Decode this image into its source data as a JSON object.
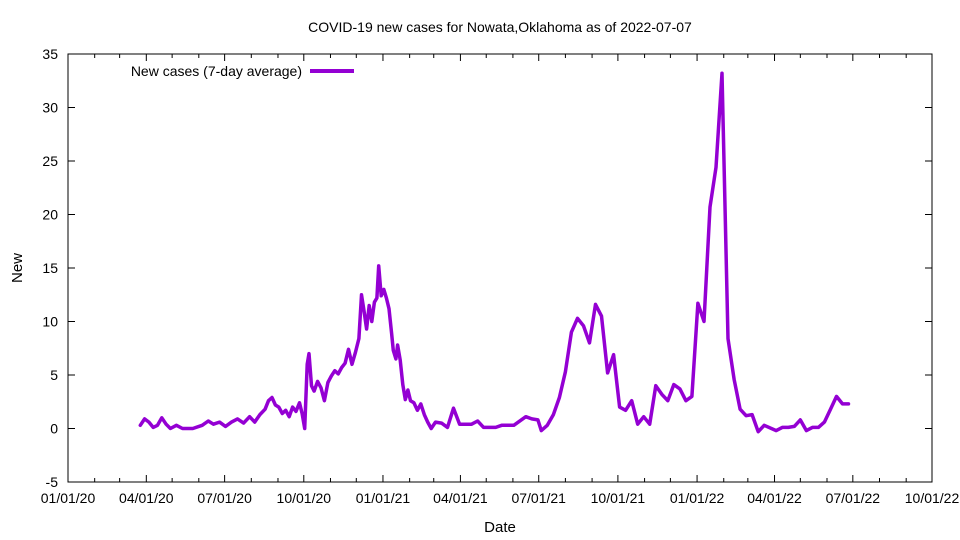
{
  "chart_data": {
    "type": "line",
    "title": "COVID-19 new cases for Nowata,Oklahoma as of 2022-07-07",
    "xlabel": "Date",
    "ylabel": "New",
    "ylim": [
      -5,
      35
    ],
    "xlim": [
      "2020-01-01",
      "2022-10-01"
    ],
    "yticks": [
      -5,
      0,
      5,
      10,
      15,
      20,
      25,
      30,
      35
    ],
    "xticks": [
      {
        "date": "2020-01-01",
        "label": "01/01/20"
      },
      {
        "date": "2020-04-01",
        "label": "04/01/20"
      },
      {
        "date": "2020-07-01",
        "label": "07/01/20"
      },
      {
        "date": "2020-10-01",
        "label": "10/01/20"
      },
      {
        "date": "2021-01-01",
        "label": "01/01/21"
      },
      {
        "date": "2021-04-01",
        "label": "04/01/21"
      },
      {
        "date": "2021-07-01",
        "label": "07/01/21"
      },
      {
        "date": "2021-10-01",
        "label": "10/01/21"
      },
      {
        "date": "2022-01-01",
        "label": "01/01/22"
      },
      {
        "date": "2022-04-01",
        "label": "04/01/22"
      },
      {
        "date": "2022-07-01",
        "label": "07/01/22"
      },
      {
        "date": "2022-10-01",
        "label": "10/01/22"
      }
    ],
    "grid": false,
    "legend_position": "top-left",
    "series": [
      {
        "name": "New cases (7-day average)",
        "color": "#9400d3",
        "points": [
          [
            "2020-03-25",
            0.3
          ],
          [
            "2020-03-30",
            0.9
          ],
          [
            "2020-04-04",
            0.6
          ],
          [
            "2020-04-09",
            0.1
          ],
          [
            "2020-04-14",
            0.3
          ],
          [
            "2020-04-19",
            1.0
          ],
          [
            "2020-04-24",
            0.4
          ],
          [
            "2020-04-29",
            0.0
          ],
          [
            "2020-05-06",
            0.3
          ],
          [
            "2020-05-13",
            0.0
          ],
          [
            "2020-05-25",
            0.0
          ],
          [
            "2020-06-05",
            0.3
          ],
          [
            "2020-06-12",
            0.7
          ],
          [
            "2020-06-18",
            0.4
          ],
          [
            "2020-06-25",
            0.6
          ],
          [
            "2020-07-02",
            0.2
          ],
          [
            "2020-07-09",
            0.6
          ],
          [
            "2020-07-16",
            0.9
          ],
          [
            "2020-07-23",
            0.5
          ],
          [
            "2020-07-30",
            1.1
          ],
          [
            "2020-08-05",
            0.6
          ],
          [
            "2020-08-11",
            1.3
          ],
          [
            "2020-08-17",
            1.8
          ],
          [
            "2020-08-21",
            2.6
          ],
          [
            "2020-08-25",
            2.9
          ],
          [
            "2020-08-29",
            2.2
          ],
          [
            "2020-09-02",
            2.0
          ],
          [
            "2020-09-06",
            1.4
          ],
          [
            "2020-09-10",
            1.7
          ],
          [
            "2020-09-14",
            1.1
          ],
          [
            "2020-09-18",
            2.0
          ],
          [
            "2020-09-22",
            1.6
          ],
          [
            "2020-09-26",
            2.4
          ],
          [
            "2020-09-29",
            1.4
          ],
          [
            "2020-10-02",
            0.0
          ],
          [
            "2020-10-05",
            6.0
          ],
          [
            "2020-10-07",
            7.0
          ],
          [
            "2020-10-10",
            4.0
          ],
          [
            "2020-10-13",
            3.5
          ],
          [
            "2020-10-17",
            4.4
          ],
          [
            "2020-10-21",
            3.8
          ],
          [
            "2020-10-25",
            2.6
          ],
          [
            "2020-10-29",
            4.3
          ],
          [
            "2020-11-02",
            4.9
          ],
          [
            "2020-11-06",
            5.4
          ],
          [
            "2020-11-10",
            5.1
          ],
          [
            "2020-11-14",
            5.7
          ],
          [
            "2020-11-18",
            6.1
          ],
          [
            "2020-11-22",
            7.4
          ],
          [
            "2020-11-26",
            6.0
          ],
          [
            "2020-11-30",
            7.1
          ],
          [
            "2020-12-04",
            8.4
          ],
          [
            "2020-12-07",
            12.5
          ],
          [
            "2020-12-10",
            11.0
          ],
          [
            "2020-12-13",
            9.3
          ],
          [
            "2020-12-16",
            11.5
          ],
          [
            "2020-12-19",
            10.0
          ],
          [
            "2020-12-22",
            11.8
          ],
          [
            "2020-12-25",
            12.2
          ],
          [
            "2020-12-27",
            15.2
          ],
          [
            "2020-12-30",
            12.4
          ],
          [
            "2021-01-02",
            13.0
          ],
          [
            "2021-01-05",
            12.2
          ],
          [
            "2021-01-08",
            11.2
          ],
          [
            "2021-01-11",
            8.9
          ],
          [
            "2021-01-13",
            7.3
          ],
          [
            "2021-01-16",
            6.5
          ],
          [
            "2021-01-18",
            7.8
          ],
          [
            "2021-01-21",
            6.4
          ],
          [
            "2021-01-24",
            4.1
          ],
          [
            "2021-01-27",
            2.7
          ],
          [
            "2021-01-30",
            3.6
          ],
          [
            "2021-02-02",
            2.6
          ],
          [
            "2021-02-06",
            2.4
          ],
          [
            "2021-02-10",
            1.7
          ],
          [
            "2021-02-14",
            2.3
          ],
          [
            "2021-02-18",
            1.3
          ],
          [
            "2021-02-22",
            0.6
          ],
          [
            "2021-02-26",
            0.0
          ],
          [
            "2021-03-03",
            0.6
          ],
          [
            "2021-03-10",
            0.5
          ],
          [
            "2021-03-17",
            0.1
          ],
          [
            "2021-03-24",
            1.9
          ],
          [
            "2021-03-31",
            0.4
          ],
          [
            "2021-04-14",
            0.4
          ],
          [
            "2021-04-21",
            0.7
          ],
          [
            "2021-04-28",
            0.1
          ],
          [
            "2021-05-12",
            0.1
          ],
          [
            "2021-05-19",
            0.3
          ],
          [
            "2021-06-02",
            0.3
          ],
          [
            "2021-06-16",
            1.1
          ],
          [
            "2021-06-23",
            0.9
          ],
          [
            "2021-06-30",
            0.8
          ],
          [
            "2021-07-04",
            -0.2
          ],
          [
            "2021-07-11",
            0.3
          ],
          [
            "2021-07-18",
            1.3
          ],
          [
            "2021-07-25",
            2.9
          ],
          [
            "2021-08-01",
            5.3
          ],
          [
            "2021-08-08",
            9.0
          ],
          [
            "2021-08-15",
            10.3
          ],
          [
            "2021-08-22",
            9.6
          ],
          [
            "2021-08-29",
            8.0
          ],
          [
            "2021-09-05",
            11.6
          ],
          [
            "2021-09-12",
            10.5
          ],
          [
            "2021-09-19",
            5.2
          ],
          [
            "2021-09-26",
            6.9
          ],
          [
            "2021-10-03",
            2.0
          ],
          [
            "2021-10-10",
            1.7
          ],
          [
            "2021-10-17",
            2.6
          ],
          [
            "2021-10-24",
            0.4
          ],
          [
            "2021-10-31",
            1.1
          ],
          [
            "2021-11-07",
            0.4
          ],
          [
            "2021-11-14",
            4.0
          ],
          [
            "2021-11-21",
            3.2
          ],
          [
            "2021-11-28",
            2.6
          ],
          [
            "2021-12-05",
            4.1
          ],
          [
            "2021-12-12",
            3.7
          ],
          [
            "2021-12-19",
            2.6
          ],
          [
            "2021-12-26",
            3.0
          ],
          [
            "2022-01-02",
            11.7
          ],
          [
            "2022-01-09",
            10.0
          ],
          [
            "2022-01-16",
            20.7
          ],
          [
            "2022-01-23",
            24.4
          ],
          [
            "2022-01-30",
            33.2
          ],
          [
            "2022-02-06",
            8.4
          ],
          [
            "2022-02-13",
            4.6
          ],
          [
            "2022-02-20",
            1.8
          ],
          [
            "2022-02-27",
            1.2
          ],
          [
            "2022-03-06",
            1.3
          ],
          [
            "2022-03-13",
            -0.3
          ],
          [
            "2022-03-20",
            0.3
          ],
          [
            "2022-04-03",
            -0.2
          ],
          [
            "2022-04-10",
            0.1
          ],
          [
            "2022-04-17",
            0.1
          ],
          [
            "2022-04-24",
            0.2
          ],
          [
            "2022-05-01",
            0.8
          ],
          [
            "2022-05-08",
            -0.2
          ],
          [
            "2022-05-15",
            0.1
          ],
          [
            "2022-05-22",
            0.1
          ],
          [
            "2022-05-29",
            0.6
          ],
          [
            "2022-06-05",
            1.8
          ],
          [
            "2022-06-12",
            3.0
          ],
          [
            "2022-06-19",
            2.3
          ],
          [
            "2022-06-26",
            2.3
          ]
        ]
      }
    ]
  }
}
